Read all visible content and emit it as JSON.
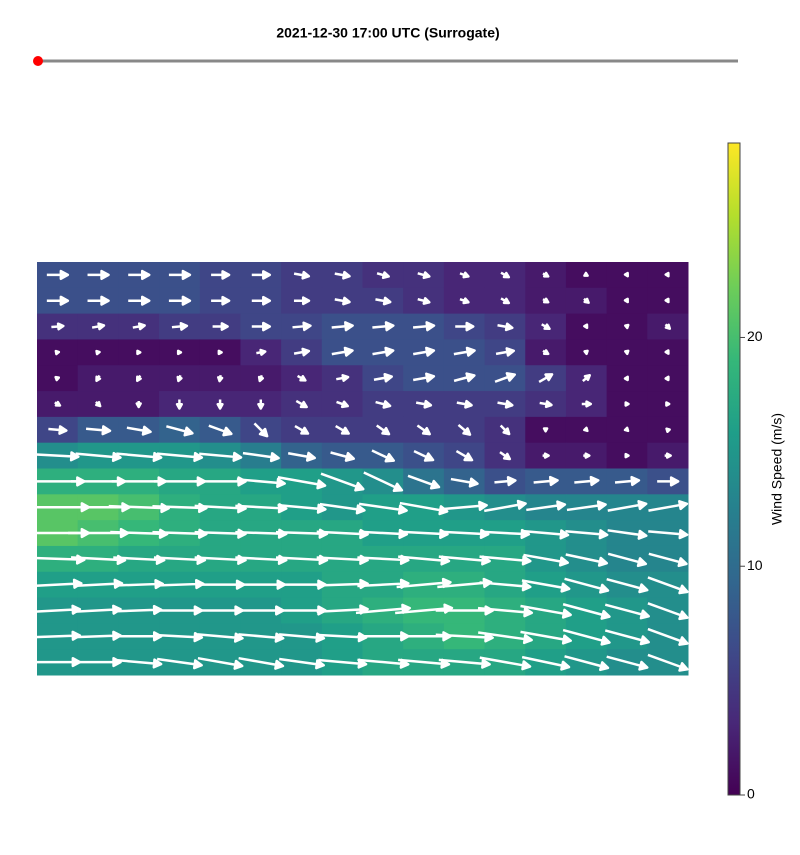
{
  "chart_data": {
    "type": "quiver",
    "title": "2021-12-30 17:00 UTC (Surrogate)",
    "colorbar_label": "Wind Speed (m/s)",
    "colormap": "viridis",
    "clim": [
      0,
      28.5
    ],
    "cticks": [
      0,
      10,
      20
    ],
    "arrow_color": "#ffffff",
    "slider_color": "#ff0000",
    "speed": [
      [
        7,
        7,
        7,
        7,
        6,
        6,
        5,
        5,
        4,
        4,
        3,
        3,
        2,
        1,
        1,
        1
      ],
      [
        7,
        7,
        7,
        7,
        6,
        6,
        5,
        5,
        5,
        4,
        3,
        3,
        2,
        2,
        1,
        1
      ],
      [
        4,
        4,
        4,
        5,
        5,
        6,
        6,
        7,
        7,
        7,
        6,
        5,
        3,
        1,
        1,
        2
      ],
      [
        1,
        1,
        1,
        1,
        1,
        3,
        5,
        7,
        7,
        7,
        7,
        6,
        2,
        1,
        1,
        1
      ],
      [
        1,
        2,
        2,
        2,
        2,
        2,
        3,
        4,
        6,
        7,
        7,
        7,
        5,
        3,
        1,
        1
      ],
      [
        2,
        2,
        2,
        3,
        3,
        3,
        4,
        4,
        5,
        5,
        5,
        5,
        4,
        3,
        1,
        1
      ],
      [
        6,
        8,
        8,
        9,
        8,
        6,
        5,
        5,
        5,
        5,
        5,
        4,
        1,
        1,
        1,
        1
      ],
      [
        14,
        15,
        15,
        15,
        14,
        12,
        9,
        8,
        8,
        7,
        6,
        4,
        2,
        2,
        1,
        2
      ],
      [
        18,
        18,
        18,
        17,
        17,
        16,
        16,
        15,
        14,
        11,
        9,
        7,
        8,
        8,
        8,
        7
      ],
      [
        21,
        21,
        20,
        18,
        17,
        17,
        16,
        15,
        16,
        16,
        15,
        14,
        13,
        13,
        13,
        13
      ],
      [
        21,
        20,
        19,
        18,
        17,
        17,
        17,
        17,
        16,
        16,
        16,
        16,
        15,
        14,
        13,
        13
      ],
      [
        18,
        18,
        17,
        17,
        17,
        17,
        17,
        17,
        17,
        17,
        17,
        17,
        15,
        14,
        13,
        13
      ],
      [
        16,
        16,
        16,
        16,
        16,
        16,
        16,
        17,
        17,
        18,
        18,
        17,
        16,
        15,
        14,
        14
      ],
      [
        15,
        15,
        15,
        15,
        15,
        15,
        16,
        17,
        18,
        19,
        19,
        18,
        17,
        16,
        15,
        14
      ],
      [
        15,
        15,
        15,
        15,
        15,
        15,
        15,
        16,
        17,
        18,
        19,
        18,
        17,
        16,
        15,
        14
      ],
      [
        15,
        15,
        15,
        15,
        15,
        15,
        15,
        16,
        17,
        17,
        17,
        17,
        16,
        15,
        14,
        14
      ]
    ],
    "angle": [
      [
        0,
        0,
        0,
        0,
        0,
        0,
        -10,
        -10,
        -15,
        -15,
        -20,
        -30,
        -30,
        -30,
        -60,
        -60
      ],
      [
        0,
        0,
        0,
        0,
        0,
        0,
        0,
        -10,
        -10,
        -15,
        -20,
        -30,
        -30,
        -40,
        -60,
        -60
      ],
      [
        5,
        10,
        10,
        5,
        0,
        0,
        5,
        5,
        5,
        5,
        0,
        -10,
        -30,
        -60,
        -80,
        -45
      ],
      [
        10,
        10,
        0,
        0,
        0,
        10,
        10,
        10,
        10,
        10,
        10,
        10,
        -30,
        -80,
        -80,
        -60
      ],
      [
        20,
        -120,
        -120,
        -110,
        -100,
        -110,
        -30,
        10,
        10,
        10,
        15,
        20,
        30,
        40,
        60,
        60
      ],
      [
        -30,
        -45,
        -90,
        -90,
        -90,
        -90,
        -30,
        -20,
        -15,
        -10,
        -10,
        -10,
        -10,
        0,
        0,
        0
      ],
      [
        -5,
        -5,
        -10,
        -15,
        -20,
        -45,
        -30,
        -30,
        -35,
        -35,
        -40,
        -45,
        -90,
        -45,
        -45,
        135
      ],
      [
        -3,
        -5,
        -5,
        -5,
        -5,
        -8,
        -10,
        -15,
        -25,
        -25,
        -30,
        -35,
        0,
        0,
        0,
        0
      ],
      [
        0,
        0,
        0,
        0,
        0,
        -5,
        -10,
        -20,
        -25,
        -20,
        -10,
        5,
        5,
        5,
        5,
        0
      ],
      [
        0,
        0,
        -2,
        -2,
        -3,
        -3,
        -5,
        -8,
        -8,
        -10,
        5,
        10,
        8,
        8,
        10,
        10
      ],
      [
        0,
        0,
        -2,
        -2,
        -2,
        -2,
        -2,
        -3,
        -3,
        -3,
        -3,
        -3,
        -5,
        -5,
        -8,
        -5
      ],
      [
        -2,
        -3,
        -3,
        -3,
        -3,
        -3,
        -3,
        -3,
        -3,
        -5,
        -5,
        -5,
        -10,
        -12,
        -15,
        -15
      ],
      [
        3,
        3,
        2,
        2,
        0,
        0,
        0,
        2,
        3,
        5,
        5,
        -5,
        -10,
        -15,
        -15,
        -20
      ],
      [
        3,
        3,
        2,
        0,
        0,
        0,
        0,
        3,
        5,
        5,
        0,
        -5,
        -10,
        -15,
        -15,
        -20
      ],
      [
        2,
        2,
        0,
        -3,
        -5,
        -5,
        -5,
        -3,
        0,
        0,
        -3,
        -8,
        -10,
        -15,
        -15,
        -20
      ],
      [
        0,
        0,
        -5,
        -8,
        -10,
        -10,
        -8,
        -5,
        -5,
        -5,
        -5,
        -10,
        -12,
        -15,
        -15,
        -20
      ]
    ]
  }
}
